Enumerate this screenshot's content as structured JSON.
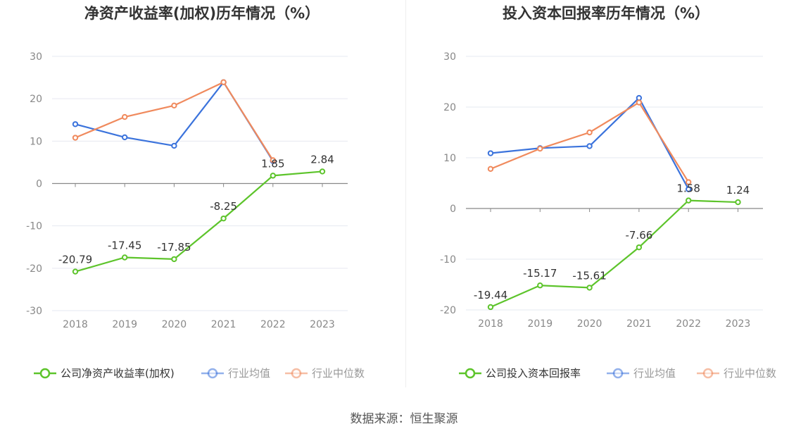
{
  "source_text": "数据来源：恒生聚源",
  "chart_data": [
    {
      "type": "line",
      "title": "净资产收益率(加权)历年情况（%）",
      "categories": [
        "2018",
        "2019",
        "2020",
        "2021",
        "2022",
        "2023"
      ],
      "y_ticks": [
        30,
        20,
        10,
        0,
        -10,
        -20,
        -30
      ],
      "ylim": [
        -30,
        30
      ],
      "grid": true,
      "legend_position": "bottom",
      "series": [
        {
          "name": "公司净资产收益率(加权)",
          "color": "#5dc42b",
          "values": [
            -20.79,
            -17.45,
            -17.85,
            -8.25,
            1.85,
            2.84
          ],
          "labels": [
            "-20.79",
            "-17.45",
            "-17.85",
            "-8.25",
            "1.85",
            "2.84"
          ]
        },
        {
          "name": "行业均值",
          "color": "#3b73dc",
          "values": [
            14.0,
            10.9,
            8.9,
            23.9,
            5.3,
            null
          ]
        },
        {
          "name": "行业中位数",
          "color": "#f08a5d",
          "values": [
            10.8,
            15.7,
            18.4,
            23.9,
            5.5,
            null
          ]
        }
      ]
    },
    {
      "type": "line",
      "title": "投入资本回报率历年情况（%）",
      "categories": [
        "2018",
        "2019",
        "2020",
        "2021",
        "2022",
        "2023"
      ],
      "y_ticks": [
        30,
        20,
        10,
        0,
        -10,
        -20
      ],
      "ylim": [
        -20,
        30
      ],
      "grid": true,
      "legend_position": "bottom",
      "series": [
        {
          "name": "公司投入资本回报率",
          "color": "#5dc42b",
          "values": [
            -19.44,
            -15.17,
            -15.61,
            -7.66,
            1.58,
            1.24
          ],
          "labels": [
            "-19.44",
            "-15.17",
            "-15.61",
            "-7.66",
            "1.58",
            "1.24"
          ]
        },
        {
          "name": "行业均值",
          "color": "#3b73dc",
          "values": [
            10.9,
            11.9,
            12.3,
            21.8,
            3.8,
            null
          ]
        },
        {
          "name": "行业中位数",
          "color": "#f08a5d",
          "values": [
            7.8,
            11.8,
            15.0,
            20.9,
            5.2,
            null
          ]
        }
      ]
    }
  ]
}
